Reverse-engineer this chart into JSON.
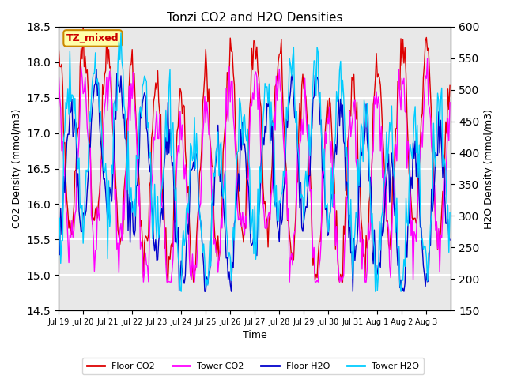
{
  "title": "Tonzi CO2 and H2O Densities",
  "xlabel": "Time",
  "ylabel_left": "CO2 Density (mmol/m3)",
  "ylabel_right": "H2O Density (mmol/m3)",
  "ylim_left": [
    14.5,
    18.5
  ],
  "ylim_right": [
    150,
    600
  ],
  "xtick_labels": [
    "Jul 19",
    "Jul 20",
    "Jul 21",
    "Jul 22",
    "Jul 23",
    "Jul 24",
    "Jul 25",
    "Jul 26",
    "Jul 27",
    "Jul 28",
    "Jul 29",
    "Jul 30",
    "Jul 31",
    "Aug 1",
    "Aug 2",
    "Aug 3"
  ],
  "annotation_text": "TZ_mixed",
  "annotation_color": "#cc0000",
  "annotation_bg": "#ffffaa",
  "annotation_border": "#cc8800",
  "legend_entries": [
    "Floor CO2",
    "Tower CO2",
    "Floor H2O",
    "Tower H2O"
  ],
  "legend_colors": [
    "#dd0000",
    "#ff00ff",
    "#0000cc",
    "#00ccff"
  ],
  "line_colors": {
    "floor_co2": "#dd0000",
    "tower_co2": "#ff00ff",
    "floor_h2o": "#0000cc",
    "tower_h2o": "#00ccff"
  },
  "bg_color": "#e8e8e8",
  "grid_color": "#ffffff",
  "n_points": 384,
  "ppd": 24,
  "seed": 42
}
